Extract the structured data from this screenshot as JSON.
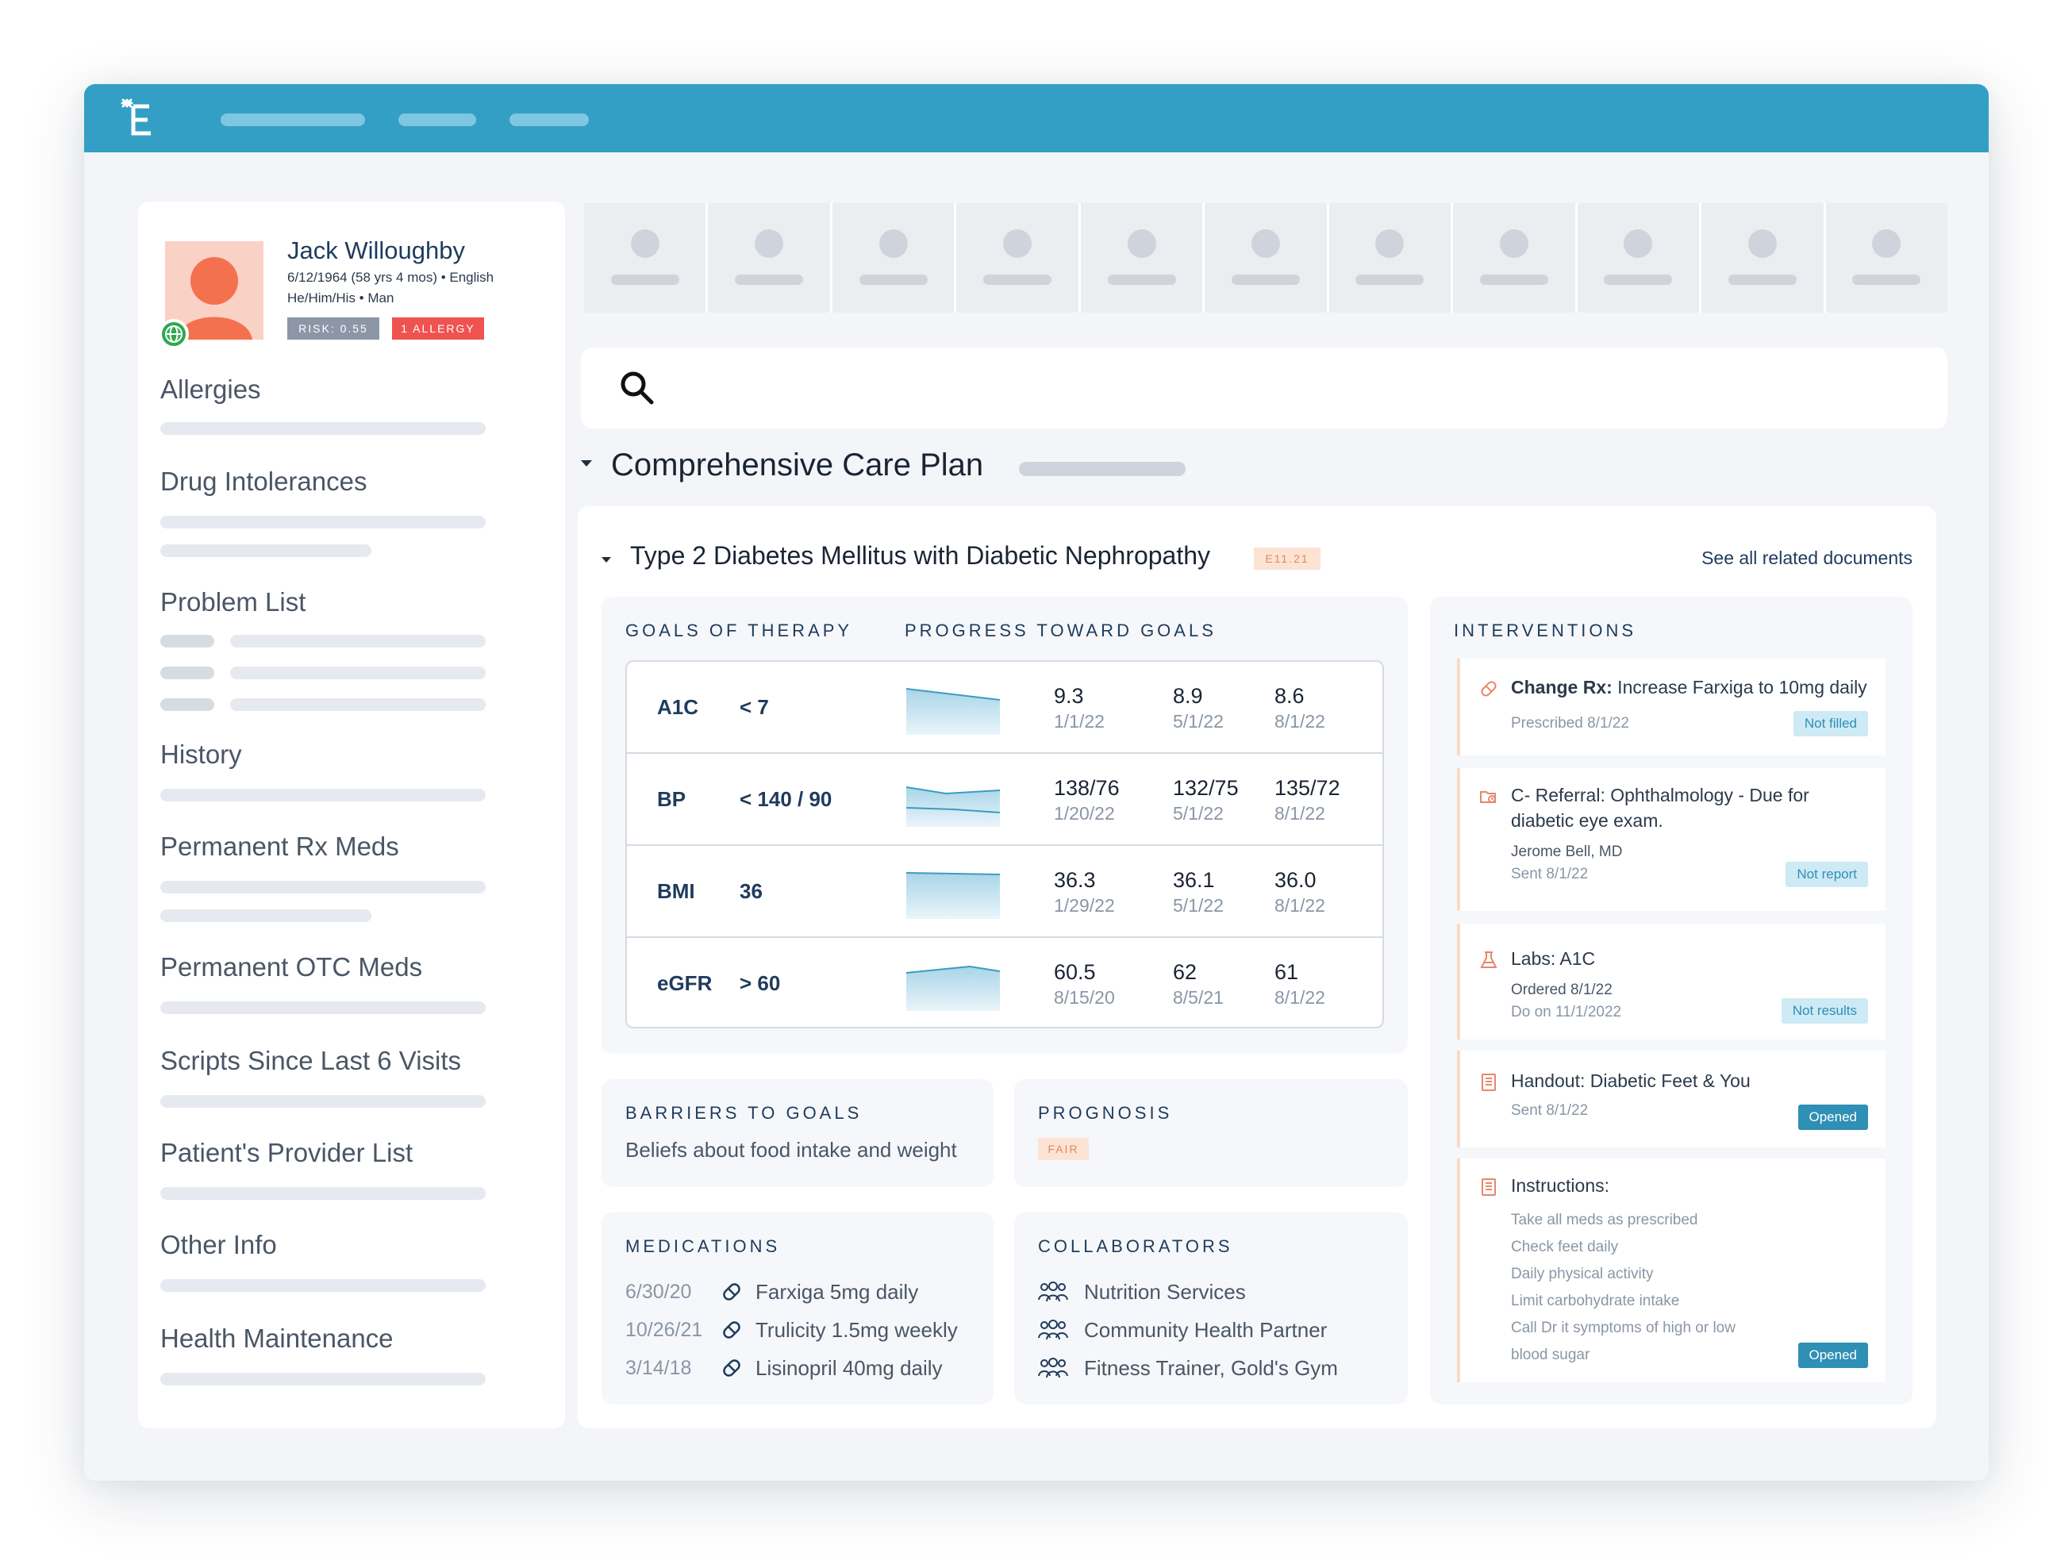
{
  "app": {
    "logo_icon": "care-plan-logo-icon",
    "brand_color": "#339fc5"
  },
  "patient": {
    "name": "Jack Willoughby",
    "dob_line": "6/12/1964 (58 yrs 4 mos) • English",
    "pronoun_line": "He/Him/His • Man",
    "risk_badge": "RISK: 0.55",
    "allergy_badge": "1 ALLERGY"
  },
  "sidebar": {
    "sections": [
      "Allergies",
      "Drug Intolerances",
      "Problem List",
      "History",
      "Permanent Rx Meds",
      "Permanent OTC Meds",
      "Scripts Since Last 6 Visits",
      "Patient's Provider List",
      "Other Info",
      "Health Maintenance"
    ]
  },
  "care_plan": {
    "title": "Comprehensive Care Plan",
    "condition": {
      "title": "Type 2 Diabetes Mellitus with Diabetic Nephropathy",
      "code": "E11.21",
      "see_all_link": "See all related documents"
    },
    "goals_header": "GOALS OF THERAPY",
    "progress_header": "PROGRESS TOWARD GOALS",
    "goals": [
      {
        "name": "A1C",
        "target": "< 7",
        "readings": [
          {
            "value": "9.3",
            "date": "1/1/22"
          },
          {
            "value": "8.9",
            "date": "5/1/22"
          },
          {
            "value": "8.6",
            "date": "8/1/22"
          }
        ]
      },
      {
        "name": "BP",
        "target": "< 140 / 90",
        "readings": [
          {
            "value": "138/76",
            "date": "1/20/22"
          },
          {
            "value": "132/75",
            "date": "5/1/22"
          },
          {
            "value": "135/72",
            "date": "8/1/22"
          }
        ]
      },
      {
        "name": "BMI",
        "target": "36",
        "readings": [
          {
            "value": "36.3",
            "date": "1/29/22"
          },
          {
            "value": "36.1",
            "date": "5/1/22"
          },
          {
            "value": "36.0",
            "date": "8/1/22"
          }
        ]
      },
      {
        "name": "eGFR",
        "target": "> 60",
        "readings": [
          {
            "value": "60.5",
            "date": "8/15/20"
          },
          {
            "value": "62",
            "date": "8/5/21"
          },
          {
            "value": "61",
            "date": "8/1/22"
          }
        ]
      }
    ],
    "barriers": {
      "header": "BARRIERS TO GOALS",
      "text": "Beliefs about food intake and weight"
    },
    "prognosis": {
      "header": "PROGNOSIS",
      "badge": "FAIR"
    },
    "medications": {
      "header": "MEDICATIONS",
      "items": [
        {
          "date": "6/30/20",
          "name": "Farxiga 5mg daily"
        },
        {
          "date": "10/26/21",
          "name": "Trulicity 1.5mg weekly"
        },
        {
          "date": "3/14/18",
          "name": "Lisinopril 40mg daily"
        }
      ]
    },
    "collaborators": {
      "header": "COLLABORATORS",
      "items": [
        "Nutrition Services",
        "Community Health Partner",
        "Fitness Trainer, Gold's Gym"
      ]
    },
    "interventions": {
      "header": "INTERVENTIONS",
      "items": [
        {
          "icon": "prescription-icon",
          "title_bold": "Change Rx:",
          "title_rest": " Increase Farxiga to 10mg daily",
          "sub1": "Prescribed 8/1/22",
          "badge": "Not filled"
        },
        {
          "icon": "referral-icon",
          "title_line1": "C- Referral: Ophthalmology - Due for",
          "title_line2": "diabetic eye exam.",
          "sub1": "Jerome Bell, MD",
          "sub2": "Sent 8/1/22",
          "badge": "Not report"
        },
        {
          "icon": "flask-icon",
          "title": "Labs: A1C",
          "sub1": "Ordered 8/1/22",
          "sub2": "Do on 11/1/2022",
          "badge": "Not results"
        },
        {
          "icon": "document-icon",
          "title": "Handout: Diabetic Feet & You",
          "sub1": "Sent 8/1/22",
          "badge": "Opened"
        },
        {
          "icon": "document-icon",
          "title": "Instructions:",
          "lines": [
            "Take all meds as prescribed",
            "Check feet daily",
            "Daily physical activity",
            "Limit carbohydrate intake",
            "Call Dr it symptoms of high or low",
            "blood sugar"
          ],
          "badge": "Opened"
        }
      ]
    }
  }
}
